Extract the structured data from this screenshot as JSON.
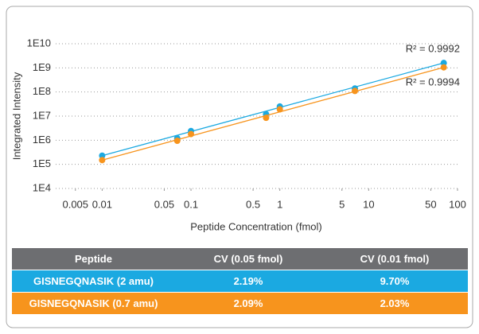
{
  "chart_data": {
    "type": "scatter",
    "x_label": "Peptide Concentration (fmol)",
    "y_label": "Integrated Intensity",
    "xscale": "log",
    "yscale": "log",
    "grid": true,
    "xlim": [
      0.003,
      100
    ],
    "xticks": [
      0.005,
      0.01,
      0.05,
      0.1,
      0.5,
      1,
      5,
      10,
      50,
      100
    ],
    "ylim": [
      10000,
      10000000000
    ],
    "yticks": [
      {
        "value": 10000,
        "label": "1E4"
      },
      {
        "value": 100000,
        "label": "1E5"
      },
      {
        "value": 1000000,
        "label": "1E6"
      },
      {
        "value": 10000000,
        "label": "1E7"
      },
      {
        "value": 100000000,
        "label": "1E8"
      },
      {
        "value": 1000000000,
        "label": "1E9"
      },
      {
        "value": 10000000000,
        "label": "1E10"
      }
    ],
    "series": [
      {
        "name": "GISNEGQNASIK (2 amu)",
        "color": "#1ba9e1",
        "annotation": "R² = 0.9992",
        "x": [
          0.01,
          0.07,
          0.1,
          0.7,
          1,
          7,
          70
        ],
        "values": [
          230000,
          1200000,
          2400000,
          12000000,
          25000000,
          140000000,
          1600000000
        ]
      },
      {
        "name": "GISNEGQNASIK (0.7 amu)",
        "color": "#f7941d",
        "annotation": "R² = 0.9994",
        "x": [
          0.01,
          0.07,
          0.1,
          0.7,
          1,
          7,
          70
        ],
        "values": [
          150000,
          950000,
          1800000,
          8500000,
          19000000,
          110000000,
          1050000000
        ]
      }
    ]
  },
  "table": {
    "header": [
      "Peptide",
      "CV (0.05 fmol)",
      "CV (0.01 fmol)"
    ],
    "rows": [
      [
        "GISNEGQNASIK (2 amu)",
        "2.19%",
        "9.70%"
      ],
      [
        "GISNEGQNASIK (0.7 amu)",
        "2.09%",
        "2.03%"
      ]
    ]
  }
}
